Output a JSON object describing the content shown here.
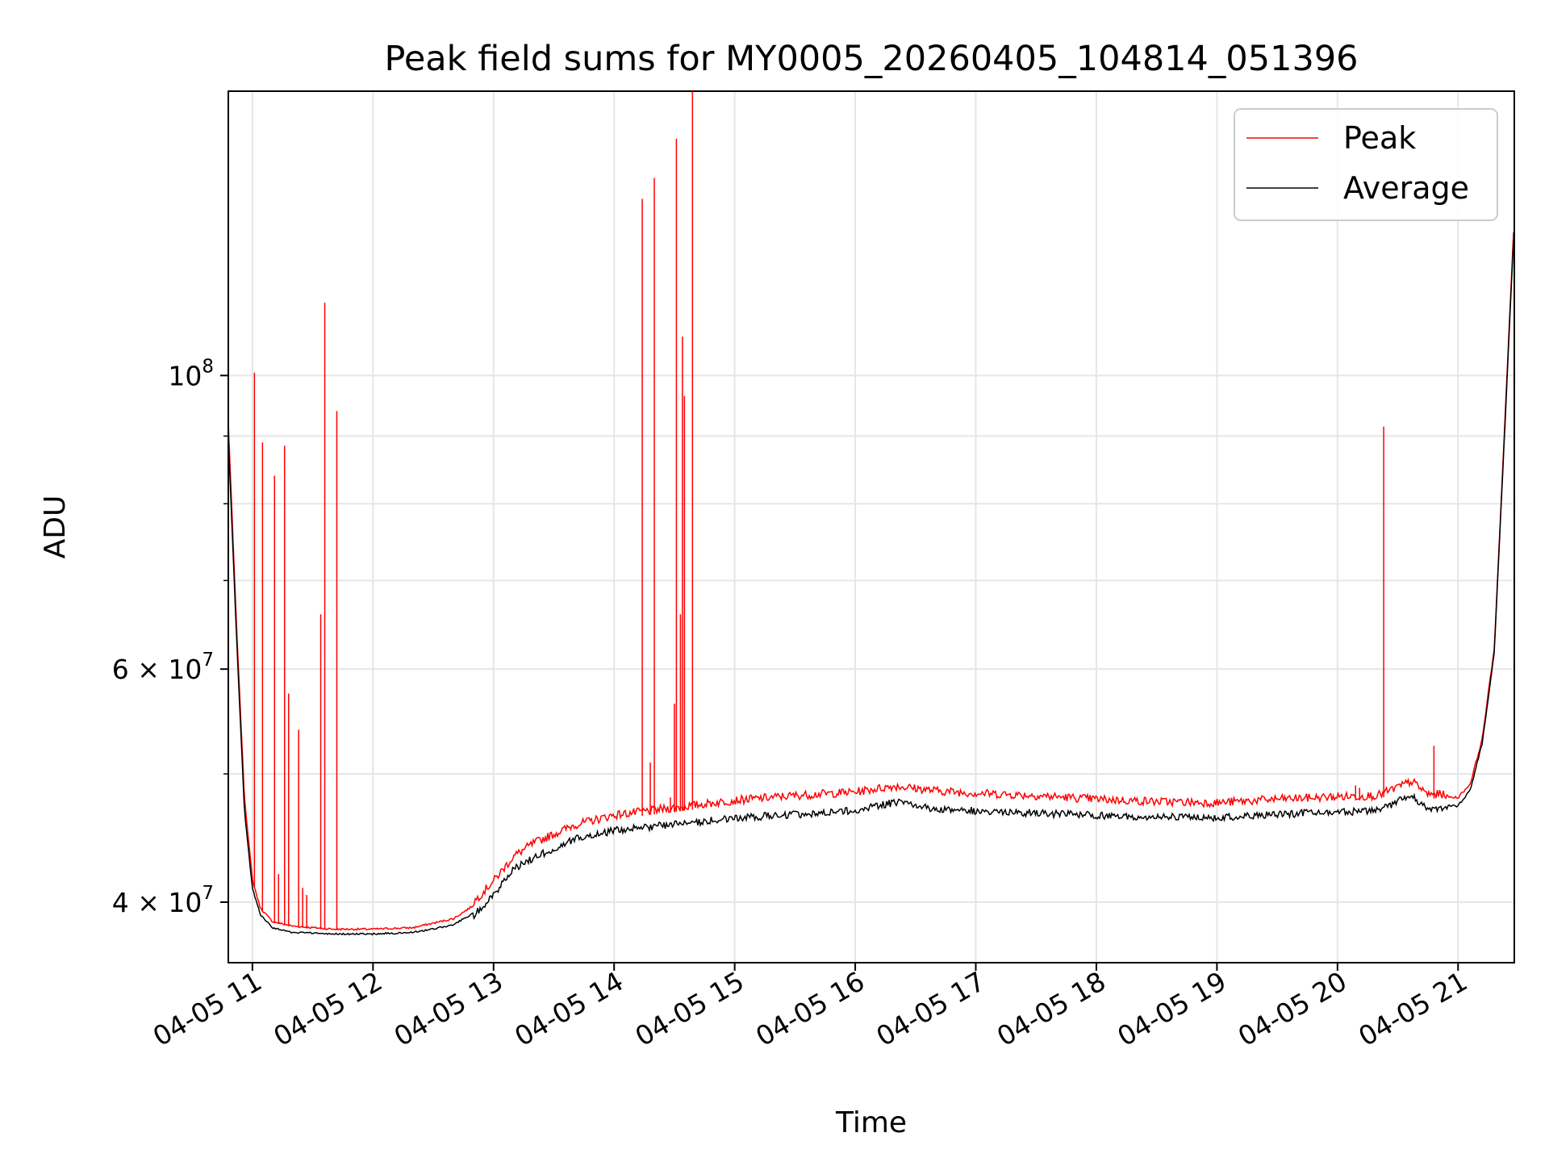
{
  "chart_data": {
    "type": "line",
    "title": "Peak field sums for MY0005_20260405_104814_051396",
    "xlabel": "Time",
    "ylabel": "ADU",
    "yscale": "log",
    "xlim": [
      "2026-04-05 10:48",
      "2026-04-05 21:28"
    ],
    "ylim": [
      36000000,
      164000000
    ],
    "grid": true,
    "legend_position": "top-right",
    "x_ticks": [
      {
        "value": "2026-04-05 11:00",
        "label": "04-05 11"
      },
      {
        "value": "2026-04-05 12:00",
        "label": "04-05 12"
      },
      {
        "value": "2026-04-05 13:00",
        "label": "04-05 13"
      },
      {
        "value": "2026-04-05 14:00",
        "label": "04-05 14"
      },
      {
        "value": "2026-04-05 15:00",
        "label": "04-05 15"
      },
      {
        "value": "2026-04-05 16:00",
        "label": "04-05 16"
      },
      {
        "value": "2026-04-05 17:00",
        "label": "04-05 17"
      },
      {
        "value": "2026-04-05 18:00",
        "label": "04-05 18"
      },
      {
        "value": "2026-04-05 19:00",
        "label": "04-05 19"
      },
      {
        "value": "2026-04-05 20:00",
        "label": "04-05 20"
      },
      {
        "value": "2026-04-05 21:00",
        "label": "04-05 21"
      }
    ],
    "y_major_ticks": [
      {
        "value": 40000000,
        "base": "4 × 10",
        "exp": "7"
      },
      {
        "value": 60000000,
        "base": "6 × 10",
        "exp": "7"
      },
      {
        "value": 100000000,
        "base": "10",
        "exp": "8"
      }
    ],
    "y_minor_gridlines": [
      50000000,
      70000000,
      80000000,
      90000000
    ],
    "series": [
      {
        "name": "Peak",
        "color": "#ff0000",
        "baseline": [
          [
            "2026-04-05 10:48",
            92000000
          ],
          [
            "2026-04-05 10:52",
            65000000
          ],
          [
            "2026-04-05 10:56",
            48000000
          ],
          [
            "2026-04-05 11:00",
            41500000
          ],
          [
            "2026-04-05 11:04",
            39500000
          ],
          [
            "2026-04-05 11:10",
            38600000
          ],
          [
            "2026-04-05 11:20",
            38300000
          ],
          [
            "2026-04-05 11:40",
            38100000
          ],
          [
            "2026-04-05 12:00",
            38100000
          ],
          [
            "2026-04-05 12:20",
            38200000
          ],
          [
            "2026-04-05 12:40",
            38800000
          ],
          [
            "2026-04-05 12:50",
            39700000
          ],
          [
            "2026-04-05 13:00",
            41200000
          ],
          [
            "2026-04-05 13:10",
            43000000
          ],
          [
            "2026-04-05 13:20",
            44000000
          ],
          [
            "2026-04-05 13:40",
            45400000
          ],
          [
            "2026-04-05 14:00",
            46200000
          ],
          [
            "2026-04-05 14:30",
            46800000
          ],
          [
            "2026-04-05 15:00",
            47400000
          ],
          [
            "2026-04-05 15:30",
            47800000
          ],
          [
            "2026-04-05 16:00",
            48100000
          ],
          [
            "2026-04-05 16:20",
            48600000
          ],
          [
            "2026-04-05 16:40",
            48200000
          ],
          [
            "2026-04-05 17:00",
            48000000
          ],
          [
            "2026-04-05 17:30",
            47800000
          ],
          [
            "2026-04-05 18:00",
            47500000
          ],
          [
            "2026-04-05 18:30",
            47300000
          ],
          [
            "2026-04-05 19:00",
            47200000
          ],
          [
            "2026-04-05 19:30",
            47500000
          ],
          [
            "2026-04-05 20:00",
            47700000
          ],
          [
            "2026-04-05 20:20",
            47800000
          ],
          [
            "2026-04-05 20:37",
            49000000
          ],
          [
            "2026-04-05 20:45",
            47900000
          ],
          [
            "2026-04-05 21:00",
            47900000
          ],
          [
            "2026-04-05 21:06",
            49000000
          ],
          [
            "2026-04-05 21:12",
            53000000
          ],
          [
            "2026-04-05 21:18",
            62000000
          ],
          [
            "2026-04-05 21:23",
            90000000
          ],
          [
            "2026-04-05 21:28",
            132000000
          ]
        ],
        "spikes": [
          [
            "2026-04-05 11:01",
            100500000
          ],
          [
            "2026-04-05 11:05",
            89000000
          ],
          [
            "2026-04-05 11:11",
            84000000
          ],
          [
            "2026-04-05 11:13",
            42000000
          ],
          [
            "2026-04-05 11:16",
            88500000
          ],
          [
            "2026-04-05 11:18",
            57500000
          ],
          [
            "2026-04-05 11:23",
            54000000
          ],
          [
            "2026-04-05 11:25",
            41000000
          ],
          [
            "2026-04-05 11:27",
            40500000
          ],
          [
            "2026-04-05 11:34",
            66000000
          ],
          [
            "2026-04-05 11:36",
            113500000
          ],
          [
            "2026-04-05 11:42",
            94000000
          ],
          [
            "2026-04-05 14:14",
            136000000
          ],
          [
            "2026-04-05 14:18",
            51000000
          ],
          [
            "2026-04-05 14:20",
            141000000
          ],
          [
            "2026-04-05 14:28",
            48000000
          ],
          [
            "2026-04-05 14:30",
            56500000
          ],
          [
            "2026-04-05 14:31",
            151000000
          ],
          [
            "2026-04-05 14:33",
            66000000
          ],
          [
            "2026-04-05 14:34",
            107000000
          ],
          [
            "2026-04-05 14:35",
            96500000
          ],
          [
            "2026-04-05 14:39",
            164000000
          ],
          [
            "2026-04-05 20:09",
            49000000
          ],
          [
            "2026-04-05 20:11",
            48800000
          ],
          [
            "2026-04-05 20:23",
            91500000
          ],
          [
            "2026-04-05 20:48",
            52500000
          ]
        ]
      },
      {
        "name": "Average",
        "color": "#000000",
        "baseline": [
          [
            "2026-04-05 10:48",
            90000000
          ],
          [
            "2026-04-05 10:52",
            64000000
          ],
          [
            "2026-04-05 10:56",
            47000000
          ],
          [
            "2026-04-05 11:00",
            41000000
          ],
          [
            "2026-04-05 11:04",
            39200000
          ],
          [
            "2026-04-05 11:10",
            38300000
          ],
          [
            "2026-04-05 11:20",
            38000000
          ],
          [
            "2026-04-05 11:40",
            37900000
          ],
          [
            "2026-04-05 12:00",
            37900000
          ],
          [
            "2026-04-05 12:20",
            38000000
          ],
          [
            "2026-04-05 12:40",
            38500000
          ],
          [
            "2026-04-05 12:50",
            39300000
          ],
          [
            "2026-04-05 13:00",
            40800000
          ],
          [
            "2026-04-05 13:10",
            42600000
          ],
          [
            "2026-04-05 13:20",
            43500000
          ],
          [
            "2026-04-05 13:40",
            44900000
          ],
          [
            "2026-04-05 14:00",
            45600000
          ],
          [
            "2026-04-05 14:30",
            46100000
          ],
          [
            "2026-04-05 15:00",
            46600000
          ],
          [
            "2026-04-05 15:30",
            46900000
          ],
          [
            "2026-04-05 16:00",
            47200000
          ],
          [
            "2026-04-05 16:20",
            47900000
          ],
          [
            "2026-04-05 16:40",
            47300000
          ],
          [
            "2026-04-05 17:00",
            47200000
          ],
          [
            "2026-04-05 17:30",
            47000000
          ],
          [
            "2026-04-05 18:00",
            46800000
          ],
          [
            "2026-04-05 18:30",
            46700000
          ],
          [
            "2026-04-05 19:00",
            46600000
          ],
          [
            "2026-04-05 19:30",
            46900000
          ],
          [
            "2026-04-05 20:00",
            47100000
          ],
          [
            "2026-04-05 20:20",
            47200000
          ],
          [
            "2026-04-05 20:37",
            48500000
          ],
          [
            "2026-04-05 20:45",
            47300000
          ],
          [
            "2026-04-05 21:00",
            47400000
          ],
          [
            "2026-04-05 21:06",
            48700000
          ],
          [
            "2026-04-05 21:12",
            52800000
          ],
          [
            "2026-04-05 21:18",
            61800000
          ],
          [
            "2026-04-05 21:23",
            89500000
          ],
          [
            "2026-04-05 21:28",
            131000000
          ]
        ]
      }
    ]
  }
}
